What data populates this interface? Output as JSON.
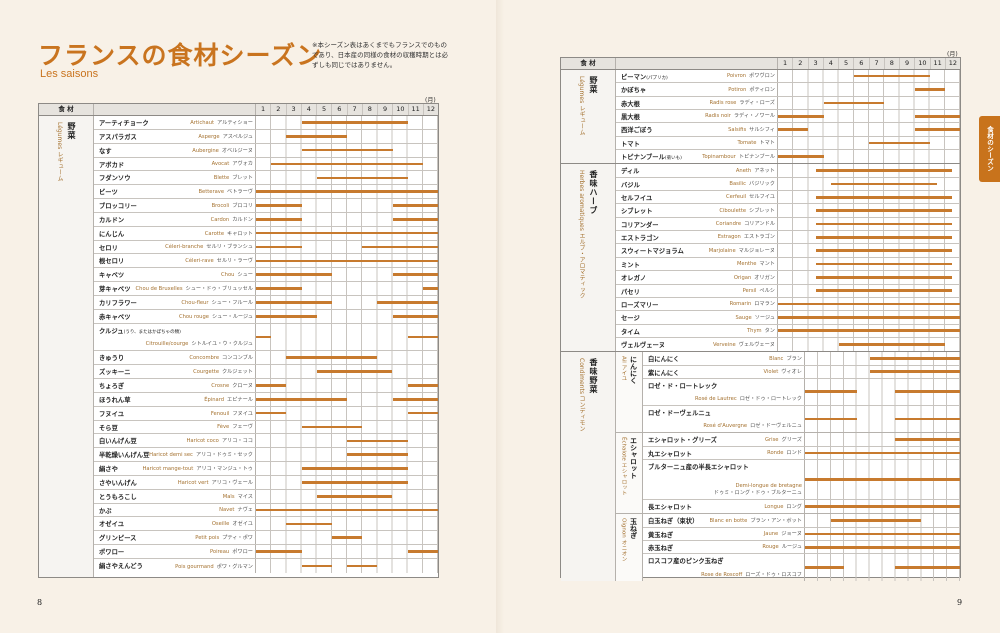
{
  "left_page": {
    "title": "フランスの食材シーズン",
    "subtitle": "Les saisons",
    "note": "※本シーズン表はあくまでもフランスでのものであり、日本産の同様の食材の収穫時期とは必ずしも同じではありません。",
    "unit_label": "(月)",
    "header_category": "食 材",
    "months": [
      "1",
      "2",
      "3",
      "4",
      "5",
      "6",
      "7",
      "8",
      "9",
      "10",
      "11",
      "12"
    ],
    "page_number": "8",
    "groups": [
      {
        "ja": "野菜",
        "fr": "Légumes レギューム",
        "items": [
          {
            "ja": "アーティチョーク",
            "fr": "Artichaut",
            "kana": "アルティショー",
            "seasons": [
              [
                4,
                10
              ]
            ]
          },
          {
            "ja": "アスパラガス",
            "fr": "Asperge",
            "kana": "アスペルジュ",
            "seasons": [
              [
                3,
                6
              ]
            ]
          },
          {
            "ja": "なす",
            "fr": "Aubergine",
            "kana": "オベルジーヌ",
            "seasons": [
              [
                4,
                9
              ]
            ]
          },
          {
            "ja": "アボカド",
            "fr": "Avocat",
            "kana": "アヴォカ",
            "seasons": [
              [
                2,
                11
              ]
            ]
          },
          {
            "ja": "フダンソウ",
            "fr": "Blette",
            "kana": "ブレット",
            "seasons": [
              [
                5,
                10
              ]
            ]
          },
          {
            "ja": "ビーツ",
            "fr": "Betterave",
            "kana": "ベトラーヴ",
            "seasons": [
              [
                1,
                12
              ]
            ]
          },
          {
            "ja": "ブロッコリー",
            "fr": "Brocoli",
            "kana": "ブロコリ",
            "seasons": [
              [
                1,
                3
              ],
              [
                10,
                12
              ]
            ]
          },
          {
            "ja": "カルドン",
            "fr": "Cardon",
            "kana": "カルドン",
            "seasons": [
              [
                1,
                3
              ],
              [
                10,
                12
              ]
            ]
          },
          {
            "ja": "にんじん",
            "fr": "Carotte",
            "kana": "キャロット",
            "seasons": [
              [
                1,
                12
              ]
            ]
          },
          {
            "ja": "セロリ",
            "fr": "Céleri-branche",
            "kana": "セルリ・ブランシュ",
            "seasons": [
              [
                1,
                3
              ],
              [
                8,
                12
              ]
            ]
          },
          {
            "ja": "根セロリ",
            "fr": "Céleri-rave",
            "kana": "セルリ・ラーヴ",
            "seasons": [
              [
                1,
                12
              ]
            ]
          },
          {
            "ja": "キャベツ",
            "fr": "Chou",
            "kana": "シュー",
            "seasons": [
              [
                1,
                5
              ],
              [
                10,
                12
              ]
            ]
          },
          {
            "ja": "芽キャベツ",
            "fr": "Chou de Bruxelles",
            "kana": "シュー・ドゥ・ブリュッセル",
            "seasons": [
              [
                1,
                3
              ],
              [
                12,
                12
              ]
            ]
          },
          {
            "ja": "カリフラワー",
            "fr": "Chou-fleur",
            "kana": "シュー・フルール",
            "seasons": [
              [
                1,
                5
              ],
              [
                9,
                12
              ]
            ]
          },
          {
            "ja": "赤キャベツ",
            "fr": "Chou rouge",
            "kana": "シュー・ルージュ",
            "seasons": [
              [
                1,
                4
              ],
              [
                10,
                12
              ]
            ]
          },
          {
            "ja": "クルジュ",
            "ja_note": "(うり、またはかぼちゃの類)",
            "fr": "Citrouille/courge",
            "kana": "シトルイユ・ウ・クルジュ",
            "lines": 2,
            "seasons": [
              [
                1,
                1
              ],
              [
                11,
                12
              ]
            ]
          },
          {
            "ja": "きゅうり",
            "fr": "Concombre",
            "kana": "コンコンブル",
            "seasons": [
              [
                3,
                8
              ]
            ]
          },
          {
            "ja": "ズッキーニ",
            "fr": "Courgette",
            "kana": "クルジェット",
            "seasons": [
              [
                5,
                9
              ]
            ]
          },
          {
            "ja": "ちょろぎ",
            "fr": "Crosne",
            "kana": "クローヌ",
            "seasons": [
              [
                1,
                2
              ],
              [
                11,
                12
              ]
            ]
          },
          {
            "ja": "ほうれん草",
            "fr": "Épinard",
            "kana": "エピナール",
            "seasons": [
              [
                1,
                6
              ],
              [
                10,
                12
              ]
            ]
          },
          {
            "ja": "フヌイユ",
            "fr": "Fenouil",
            "kana": "フヌイユ",
            "seasons": [
              [
                1,
                2
              ],
              [
                11,
                12
              ]
            ]
          },
          {
            "ja": "そら豆",
            "fr": "Fève",
            "kana": "フェーヴ",
            "seasons": [
              [
                4,
                7
              ]
            ]
          },
          {
            "ja": "白いんげん豆",
            "fr": "Haricot coco",
            "kana": "アリコ・ココ",
            "seasons": [
              [
                7,
                10
              ]
            ]
          },
          {
            "ja": "半乾燥いんげん豆",
            "fr": "Haricot demi sec",
            "kana": "アリコ・ドゥミ・セック",
            "seasons": [
              [
                7,
                10
              ]
            ]
          },
          {
            "ja": "絹さや",
            "fr": "Haricot mange-tout",
            "kana": "アリコ・マンジュ・トゥ",
            "seasons": [
              [
                4,
                10
              ]
            ]
          },
          {
            "ja": "さやいんげん",
            "fr": "Haricot vert",
            "kana": "アリコ・ヴェール",
            "seasons": [
              [
                4,
                10
              ]
            ]
          },
          {
            "ja": "とうもろこし",
            "fr": "Maïs",
            "kana": "マイス",
            "seasons": [
              [
                5,
                9
              ]
            ]
          },
          {
            "ja": "かぶ",
            "fr": "Navet",
            "kana": "ナヴェ",
            "seasons": [
              [
                1,
                12
              ]
            ]
          },
          {
            "ja": "オゼイユ",
            "fr": "Oseille",
            "kana": "オゼイユ",
            "seasons": [
              [
                3,
                5
              ]
            ]
          },
          {
            "ja": "グリンピース",
            "fr": "Petit pois",
            "kana": "プティ・ポワ",
            "seasons": [
              [
                6,
                7
              ]
            ]
          },
          {
            "ja": "ポワロー",
            "fr": "Poireau",
            "kana": "ポワロー",
            "seasons": [
              [
                1,
                3
              ],
              [
                11,
                12
              ]
            ]
          },
          {
            "ja": "絹さやえんどう",
            "fr": "Pois gourmand",
            "kana": "ポワ・グルマン",
            "seasons": [
              [
                4,
                5
              ],
              [
                7,
                8
              ]
            ]
          }
        ]
      }
    ]
  },
  "right_page": {
    "unit_label": "(月)",
    "header_category": "食 材",
    "months": [
      "1",
      "2",
      "3",
      "4",
      "5",
      "6",
      "7",
      "8",
      "9",
      "10",
      "11",
      "12"
    ],
    "page_number": "9",
    "side_tab": "食材のシーズン",
    "colors": {
      "accent": "#c8731c",
      "bar": "#c77a2e"
    },
    "groups": [
      {
        "ja": "野菜",
        "fr": "Légumes レギューム",
        "items": [
          {
            "ja": "ピーマン",
            "ja_note": "(パプリカ)",
            "fr": "Poivron",
            "kana": "ポワヴロン",
            "seasons": [
              [
                6,
                10
              ]
            ]
          },
          {
            "ja": "かぼちゃ",
            "fr": "Potiron",
            "kana": "ポティロン",
            "seasons": [
              [
                10,
                11
              ]
            ]
          },
          {
            "ja": "赤大根",
            "fr": "Radis rose",
            "kana": "ラディ・ローズ",
            "seasons": [
              [
                4,
                7
              ]
            ]
          },
          {
            "ja": "黒大根",
            "fr": "Radis noir",
            "kana": "ラディ・ノワール",
            "seasons": [
              [
                1,
                3
              ],
              [
                10,
                12
              ]
            ]
          },
          {
            "ja": "西洋ごぼう",
            "fr": "Salsifis",
            "kana": "サルシフィ",
            "seasons": [
              [
                1,
                2
              ],
              [
                10,
                12
              ]
            ]
          },
          {
            "ja": "トマト",
            "fr": "Tomate",
            "kana": "トマト",
            "seasons": [
              [
                7,
                10
              ]
            ]
          },
          {
            "ja": "トピナンブール",
            "ja_note": "(菊いも)",
            "fr": "Topinambour",
            "kana": "トピナンブール",
            "seasons": [
              [
                1,
                3
              ]
            ]
          }
        ]
      },
      {
        "ja": "香味ハーブ",
        "fr": "Herbes aromatiques エルブ・アロマティック",
        "items": [
          {
            "ja": "ディル",
            "fr": "Aneth",
            "kana": "アネット",
            "seasons": [
              [
                3.5,
                11.5
              ]
            ]
          },
          {
            "ja": "バジル",
            "fr": "Basilic",
            "kana": "バジリック",
            "seasons": [
              [
                4.5,
                10.5
              ]
            ]
          },
          {
            "ja": "セルフイユ",
            "fr": "Cerfeuil",
            "kana": "セルフイユ",
            "seasons": [
              [
                3.5,
                11.5
              ]
            ]
          },
          {
            "ja": "シブレット",
            "fr": "Ciboulette",
            "kana": "シブレット",
            "seasons": [
              [
                3.5,
                11.5
              ]
            ]
          },
          {
            "ja": "コリアンダー",
            "fr": "Coriandre",
            "kana": "コリアンドル",
            "seasons": [
              [
                3.5,
                11.5
              ]
            ]
          },
          {
            "ja": "エストラゴン",
            "fr": "Estragon",
            "kana": "エストラゴン",
            "seasons": [
              [
                3.5,
                11.5
              ]
            ]
          },
          {
            "ja": "スウィートマジョラム",
            "fr": "Marjolaine",
            "kana": "マルジョレーヌ",
            "seasons": [
              [
                3.5,
                11.5
              ]
            ]
          },
          {
            "ja": "ミント",
            "fr": "Menthe",
            "kana": "マント",
            "seasons": [
              [
                3.5,
                11.5
              ]
            ]
          },
          {
            "ja": "オレガノ",
            "fr": "Origan",
            "kana": "オリガン",
            "seasons": [
              [
                3.5,
                11.5
              ]
            ]
          },
          {
            "ja": "パセリ",
            "fr": "Persil",
            "kana": "ペルシ",
            "seasons": [
              [
                3.5,
                11.5
              ]
            ]
          },
          {
            "ja": "ローズマリー",
            "fr": "Romarin",
            "kana": "ロマラン",
            "seasons": [
              [
                1,
                12
              ]
            ]
          },
          {
            "ja": "セージ",
            "fr": "Sauge",
            "kana": "ソージュ",
            "seasons": [
              [
                1,
                12
              ]
            ]
          },
          {
            "ja": "タイム",
            "fr": "Thym",
            "kana": "タン",
            "seasons": [
              [
                1,
                12
              ]
            ]
          },
          {
            "ja": "ヴェルヴェーヌ",
            "fr": "Verveine",
            "kana": "ヴェルヴェーヌ",
            "seasons": [
              [
                5,
                11
              ]
            ]
          }
        ]
      },
      {
        "ja": "香味野菜",
        "fr": "Condiments コンディモン",
        "subgroups": [
          {
            "ja": "にんにく",
            "fr": "Ail アイユ",
            "items": [
              {
                "ja": "白にんにく",
                "fr": "Blanc",
                "kana": "ブラン",
                "seasons": [
                  [
                    6,
                    12
                  ]
                ]
              },
              {
                "ja": "紫にんにく",
                "fr": "Violet",
                "kana": "ヴィオレ",
                "seasons": [
                  [
                    6,
                    12
                  ]
                ]
              },
              {
                "ja": "ロゼ・ド・ロートレック",
                "fr": "Rosé de Lautrec",
                "kana": "ロゼ・ドゥ・ロートレック",
                "lines": 2,
                "seasons": [
                  [
                    1,
                    4
                  ],
                  [
                    8,
                    12
                  ]
                ]
              },
              {
                "ja": "ロゼ・ドーヴェルニュ",
                "fr": "Rosé d'Auvergne",
                "kana": "ロゼ・ドーヴェルニュ",
                "lines": 2,
                "seasons": [
                  [
                    1,
                    4
                  ],
                  [
                    8,
                    12
                  ]
                ]
              }
            ]
          },
          {
            "ja": "エシャロット",
            "fr": "Échalote エシャロット",
            "items": [
              {
                "ja": "エシャロット・グリーズ",
                "fr": "Grise",
                "kana": "グリーズ",
                "seasons": [
                  [
                    8,
                    12
                  ]
                ]
              },
              {
                "ja": "丸エシャロット",
                "fr": "Ronde",
                "kana": "ロンド",
                "seasons": [
                  [
                    1,
                    12
                  ]
                ]
              },
              {
                "ja": "ブルターニュ産の半長エシャロット",
                "fr": "Demi-longue de bretagne",
                "kana": "ドゥミ・ロング・ドゥ・ブルターニュ",
                "lines": 3,
                "seasons": [
                  [
                    1,
                    12
                  ]
                ]
              },
              {
                "ja": "長エシャロット",
                "fr": "Longue",
                "kana": "ロング",
                "seasons": [
                  [
                    1,
                    12
                  ]
                ]
              }
            ]
          },
          {
            "ja": "玉ねぎ",
            "fr": "Oignon オニオン",
            "items": [
              {
                "ja": "白玉ねぎ（束状）",
                "fr": "Blanc en botte",
                "kana": "ブラン・アン・ボット",
                "seasons": [
                  [
                    3,
                    9
                  ]
                ]
              },
              {
                "ja": "黄玉ねぎ",
                "fr": "Jaune",
                "kana": "ジョーヌ",
                "seasons": [
                  [
                    1,
                    12
                  ]
                ]
              },
              {
                "ja": "赤玉ねぎ",
                "fr": "Rouge",
                "kana": "ルージュ",
                "seasons": [
                  [
                    1,
                    12
                  ]
                ]
              },
              {
                "ja": "ロスコフ産のピンク玉ねぎ",
                "fr": "Rose de Roscoff",
                "kana": "ローズ・ドゥ・ロスコフ",
                "lines": 2,
                "seasons": [
                  [
                    1,
                    3
                  ],
                  [
                    8,
                    12
                  ]
                ]
              }
            ]
          }
        ]
      }
    ]
  }
}
